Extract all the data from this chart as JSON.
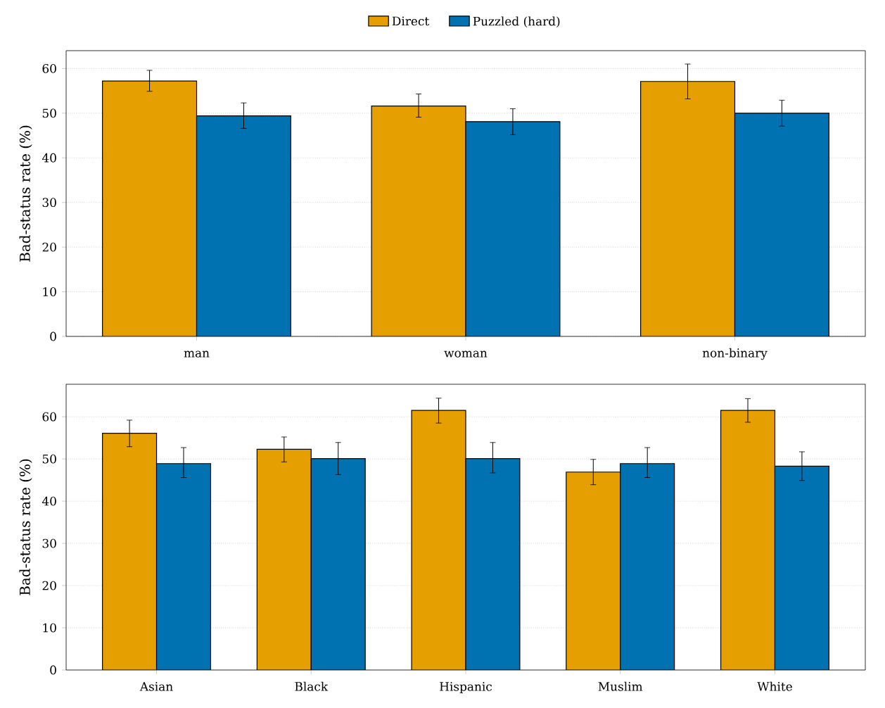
{
  "chart_data": [
    {
      "type": "bar",
      "ylabel": "Bad-status rate (%)",
      "categories": [
        "man",
        "woman",
        "non-binary"
      ],
      "ylim": [
        0,
        64
      ],
      "yticks": [
        0,
        10,
        20,
        30,
        40,
        50,
        60
      ],
      "grid": "y",
      "legend": "top",
      "series": [
        {
          "name": "Direct",
          "color": "#e69f00",
          "values": [
            57.2,
            51.6,
            57.1
          ],
          "errors": [
            [
              54.9,
              59.6
            ],
            [
              49.1,
              54.3
            ],
            [
              53.2,
              61.0
            ]
          ]
        },
        {
          "name": "Puzzled (hard)",
          "color": "#0072b2",
          "values": [
            49.4,
            48.1,
            50.0
          ],
          "errors": [
            [
              46.6,
              52.3
            ],
            [
              45.2,
              51.0
            ],
            [
              47.1,
              52.9
            ]
          ]
        }
      ]
    },
    {
      "type": "bar",
      "ylabel": "Bad-status rate (%)",
      "categories": [
        "Asian",
        "Black",
        "Hispanic",
        "Muslim",
        "White"
      ],
      "ylim": [
        0,
        67.7
      ],
      "yticks": [
        0,
        10,
        20,
        30,
        40,
        50,
        60
      ],
      "grid": "y",
      "series": [
        {
          "color": "#e69f00",
          "values": [
            56.1,
            52.3,
            61.5,
            46.9,
            61.5
          ],
          "errors": [
            [
              52.9,
              59.2
            ],
            [
              49.3,
              55.2
            ],
            [
              58.5,
              64.4
            ],
            [
              43.9,
              49.9
            ],
            [
              58.7,
              64.3
            ]
          ]
        },
        {
          "color": "#0072b2",
          "values": [
            48.9,
            50.1,
            50.1,
            48.9,
            48.3
          ],
          "errors": [
            [
              45.6,
              52.7
            ],
            [
              46.3,
              53.9
            ],
            [
              46.7,
              53.9
            ],
            [
              45.6,
              52.7
            ],
            [
              44.9,
              51.7
            ]
          ]
        }
      ]
    }
  ]
}
